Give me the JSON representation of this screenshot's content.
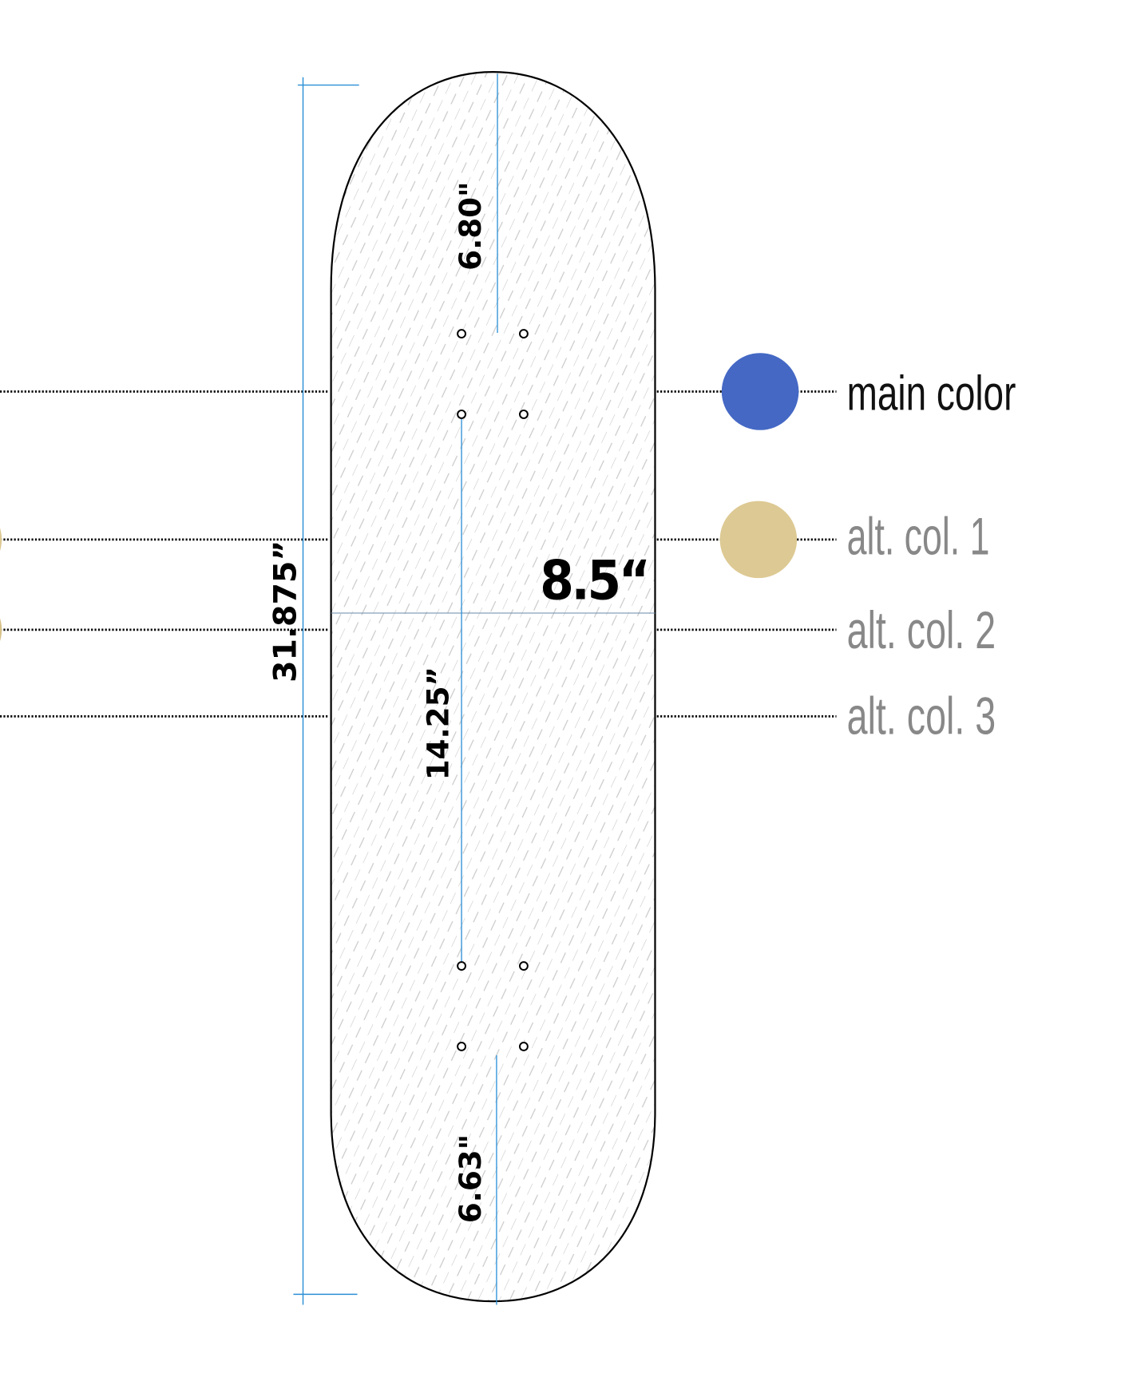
{
  "dimensions": {
    "length": "31.875”",
    "width": "8.5“",
    "nose": "6.80\"",
    "wheelbase": "14.25”",
    "tail": "6.63\""
  },
  "colors": {
    "options": [
      {
        "label": "main color",
        "swatch": "#4468c4",
        "text_color": "#111111"
      },
      {
        "label": "alt. col. 1",
        "swatch": "#ddc993",
        "text_color": "#888888"
      },
      {
        "label": "alt. col. 2",
        "text_color": "#888888"
      },
      {
        "label": "alt. col. 3",
        "text_color": "#888888"
      }
    ],
    "dimension_line": "#2a8fd6",
    "outline": "#000000"
  }
}
